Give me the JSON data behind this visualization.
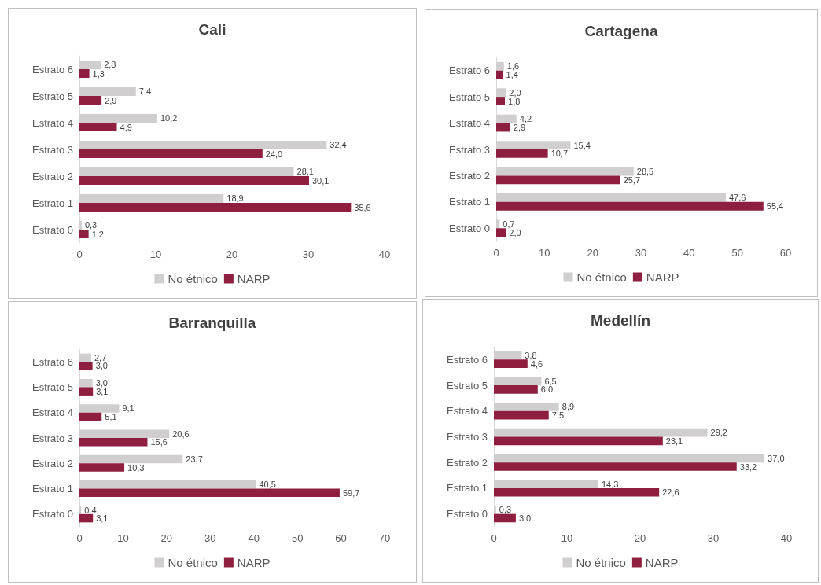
{
  "chart_data": [
    {
      "type": "bar",
      "orientation": "horizontal",
      "title": "Cali",
      "categories": [
        "Estrato 6",
        "Estrato 5",
        "Estrato 4",
        "Estrato 3",
        "Estrato 2",
        "Estrato 1",
        "Estrato 0"
      ],
      "xlim": [
        0,
        40
      ],
      "xticks": [
        0,
        10,
        20,
        30,
        40
      ],
      "grid": false,
      "legend": "bottom",
      "series": [
        {
          "name": "No étnico",
          "color": "#d0cece",
          "values": [
            2.8,
            7.4,
            10.2,
            32.4,
            28.1,
            18.9,
            0.3
          ],
          "value_labels": [
            "2,8",
            "7,4",
            "10,2",
            "32,4",
            "28,1",
            "18,9",
            "0,3"
          ]
        },
        {
          "name": "NARP",
          "color": "#8e1f3f",
          "values": [
            1.3,
            2.9,
            4.9,
            24.0,
            30.1,
            35.6,
            1.2
          ],
          "value_labels": [
            "1,3",
            "2,9",
            "4,9",
            "24,0",
            "30,1",
            "35,6",
            "1,2"
          ]
        }
      ]
    },
    {
      "type": "bar",
      "orientation": "horizontal",
      "title": "Cartagena",
      "categories": [
        "Estrato 6",
        "Estrato 5",
        "Estrato 4",
        "Estrato 3",
        "Estrato 2",
        "Estrato 1",
        "Estrato 0"
      ],
      "xlim": [
        0,
        60
      ],
      "xticks": [
        0,
        10,
        20,
        30,
        40,
        50,
        60
      ],
      "grid": false,
      "legend": "bottom",
      "series": [
        {
          "name": "No étnico",
          "color": "#d0cece",
          "values": [
            1.6,
            2.0,
            4.2,
            15.4,
            28.5,
            47.6,
            0.7
          ],
          "value_labels": [
            "1,6",
            "2,0",
            "4,2",
            "15,4",
            "28,5",
            "47,6",
            "0,7"
          ]
        },
        {
          "name": "NARP",
          "color": "#8e1f3f",
          "values": [
            1.4,
            1.8,
            2.9,
            10.7,
            25.7,
            55.4,
            2.0
          ],
          "value_labels": [
            "1,4",
            "1,8",
            "2,9",
            "10,7",
            "25,7",
            "55,4",
            "2,0"
          ]
        }
      ]
    },
    {
      "type": "bar",
      "orientation": "horizontal",
      "title": "Barranquilla",
      "categories": [
        "Estrato 6",
        "Estrato 5",
        "Estrato 4",
        "Estrato 3",
        "Estrato 2",
        "Estrato 1",
        "Estrato 0"
      ],
      "xlim": [
        0,
        70
      ],
      "xticks": [
        0,
        10,
        20,
        30,
        40,
        50,
        60,
        70
      ],
      "grid": false,
      "legend": "bottom",
      "series": [
        {
          "name": "No étnico",
          "color": "#d0cece",
          "values": [
            2.7,
            3.0,
            9.1,
            20.6,
            23.7,
            40.5,
            0.4
          ],
          "value_labels": [
            "2,7",
            "3,0",
            "9,1",
            "20,6",
            "23,7",
            "40,5",
            "0,4"
          ]
        },
        {
          "name": "NARP",
          "color": "#8e1f3f",
          "values": [
            3.0,
            3.1,
            5.1,
            15.6,
            10.3,
            59.7,
            3.1
          ],
          "value_labels": [
            "3,0",
            "3,1",
            "5,1",
            "15,6",
            "10,3",
            "59,7",
            "3,1"
          ]
        }
      ]
    },
    {
      "type": "bar",
      "orientation": "horizontal",
      "title": "Medellín",
      "categories": [
        "Estrato 6",
        "Estrato 5",
        "Estrato 4",
        "Estrato 3",
        "Estrato 2",
        "Estrato 1",
        "Estrato 0"
      ],
      "xlim": [
        0,
        40
      ],
      "xticks": [
        0,
        10,
        20,
        30,
        40
      ],
      "grid": false,
      "legend": "bottom",
      "series": [
        {
          "name": "No étnico",
          "color": "#d0cece",
          "values": [
            3.8,
            6.5,
            8.9,
            29.2,
            37.0,
            14.3,
            0.3
          ],
          "value_labels": [
            "3,8",
            "6,5",
            "8,9",
            "29,2",
            "37,0",
            "14,3",
            "0,3"
          ]
        },
        {
          "name": "NARP",
          "color": "#8e1f3f",
          "values": [
            4.6,
            6.0,
            7.5,
            23.1,
            33.2,
            22.6,
            3.0
          ],
          "value_labels": [
            "4,6",
            "6,0",
            "7,5",
            "23,1",
            "33,2",
            "22,6",
            "3,0"
          ]
        }
      ]
    }
  ]
}
